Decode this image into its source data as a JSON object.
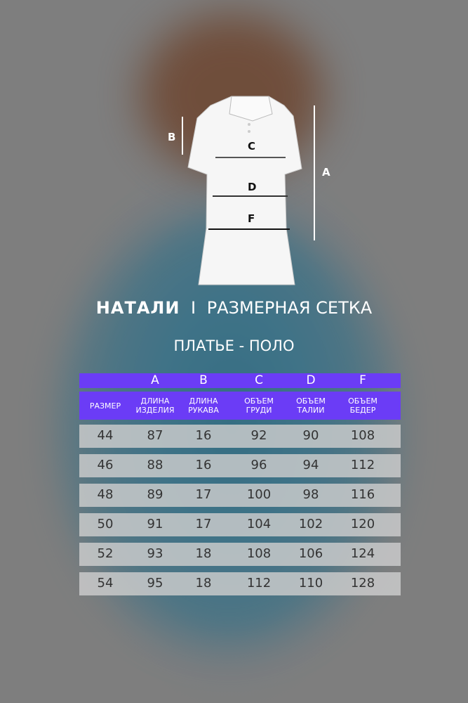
{
  "diagram": {
    "labels": {
      "a": "A",
      "b": "B",
      "c": "C",
      "d": "D",
      "f": "F"
    }
  },
  "brand": {
    "name": "НАТАЛИ",
    "separator": "I",
    "title": "РАЗМЕРНАЯ СЕТКА"
  },
  "subtitle": "ПЛАТЬЕ - ПОЛО",
  "colors": {
    "header": "#6b3cf6",
    "row": "#cdcdcd"
  },
  "table": {
    "letters": [
      "",
      "A",
      "B",
      "C",
      "D",
      "F"
    ],
    "headers": [
      "РАЗМЕР",
      "ДЛИНА\nИЗДЕЛИЯ",
      "ДЛИНА\nРУКАВА",
      "ОБЪЕМ\nГРУДИ",
      "ОБЪЕМ\nТАЛИИ",
      "ОБЪЕМ\nБЕДЕР"
    ],
    "rows": [
      [
        "44",
        "87",
        "16",
        "92",
        "90",
        "108"
      ],
      [
        "46",
        "88",
        "16",
        "96",
        "94",
        "112"
      ],
      [
        "48",
        "89",
        "17",
        "100",
        "98",
        "116"
      ],
      [
        "50",
        "91",
        "17",
        "104",
        "102",
        "120"
      ],
      [
        "52",
        "93",
        "18",
        "108",
        "106",
        "124"
      ],
      [
        "54",
        "95",
        "18",
        "112",
        "110",
        "128"
      ]
    ]
  }
}
